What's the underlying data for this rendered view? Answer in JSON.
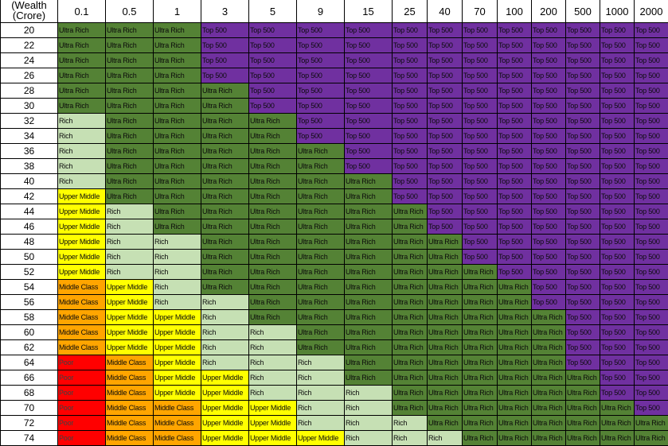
{
  "header": {
    "corner_lines": [
      "(Wealth",
      "(Crore)"
    ],
    "columns": [
      "0.1",
      "0.5",
      "1",
      "3",
      "5",
      "9",
      "15",
      "25",
      "40",
      "70",
      "100",
      "200",
      "500",
      "1000",
      "2000"
    ]
  },
  "category_colors": {
    "Top 500": "#7030a0",
    "Ultra Rich": "#548235",
    "Rich": "#c6e0b4",
    "Upper Middle": "#ffff00",
    "Middle Class": "#ffa500",
    "Poor": "#ff0000"
  },
  "rows": [
    {
      "age": "20",
      "cells": [
        "Ultra Rich",
        "Ultra Rich",
        "Ultra Rich",
        "Top 500",
        "Top 500",
        "Top 500",
        "Top 500",
        "Top 500",
        "Top 500",
        "Top 500",
        "Top 500",
        "Top 500",
        "Top 500",
        "Top 500",
        "Top 500"
      ]
    },
    {
      "age": "22",
      "cells": [
        "Ultra Rich",
        "Ultra Rich",
        "Ultra Rich",
        "Top 500",
        "Top 500",
        "Top 500",
        "Top 500",
        "Top 500",
        "Top 500",
        "Top 500",
        "Top 500",
        "Top 500",
        "Top 500",
        "Top 500",
        "Top 500"
      ]
    },
    {
      "age": "24",
      "cells": [
        "Ultra Rich",
        "Ultra Rich",
        "Ultra Rich",
        "Top 500",
        "Top 500",
        "Top 500",
        "Top 500",
        "Top 500",
        "Top 500",
        "Top 500",
        "Top 500",
        "Top 500",
        "Top 500",
        "Top 500",
        "Top 500"
      ]
    },
    {
      "age": "26",
      "cells": [
        "Ultra Rich",
        "Ultra Rich",
        "Ultra Rich",
        "Top 500",
        "Top 500",
        "Top 500",
        "Top 500",
        "Top 500",
        "Top 500",
        "Top 500",
        "Top 500",
        "Top 500",
        "Top 500",
        "Top 500",
        "Top 500"
      ]
    },
    {
      "age": "28",
      "cells": [
        "Ultra Rich",
        "Ultra Rich",
        "Ultra Rich",
        "Ultra Rich",
        "Top 500",
        "Top 500",
        "Top 500",
        "Top 500",
        "Top 500",
        "Top 500",
        "Top 500",
        "Top 500",
        "Top 500",
        "Top 500",
        "Top 500"
      ]
    },
    {
      "age": "30",
      "cells": [
        "Ultra Rich",
        "Ultra Rich",
        "Ultra Rich",
        "Ultra Rich",
        "Top 500",
        "Top 500",
        "Top 500",
        "Top 500",
        "Top 500",
        "Top 500",
        "Top 500",
        "Top 500",
        "Top 500",
        "Top 500",
        "Top 500"
      ]
    },
    {
      "age": "32",
      "cells": [
        "Rich",
        "Ultra Rich",
        "Ultra Rich",
        "Ultra Rich",
        "Ultra Rich",
        "Top 500",
        "Top 500",
        "Top 500",
        "Top 500",
        "Top 500",
        "Top 500",
        "Top 500",
        "Top 500",
        "Top 500",
        "Top 500"
      ]
    },
    {
      "age": "34",
      "cells": [
        "Rich",
        "Ultra Rich",
        "Ultra Rich",
        "Ultra Rich",
        "Ultra Rich",
        "Top 500",
        "Top 500",
        "Top 500",
        "Top 500",
        "Top 500",
        "Top 500",
        "Top 500",
        "Top 500",
        "Top 500",
        "Top 500"
      ]
    },
    {
      "age": "36",
      "cells": [
        "Rich",
        "Ultra Rich",
        "Ultra Rich",
        "Ultra Rich",
        "Ultra Rich",
        "Ultra Rich",
        "Top 500",
        "Top 500",
        "Top 500",
        "Top 500",
        "Top 500",
        "Top 500",
        "Top 500",
        "Top 500",
        "Top 500"
      ]
    },
    {
      "age": "38",
      "cells": [
        "Rich",
        "Ultra Rich",
        "Ultra Rich",
        "Ultra Rich",
        "Ultra Rich",
        "Ultra Rich",
        "Top 500",
        "Top 500",
        "Top 500",
        "Top 500",
        "Top 500",
        "Top 500",
        "Top 500",
        "Top 500",
        "Top 500"
      ]
    },
    {
      "age": "40",
      "cells": [
        "Rich",
        "Ultra Rich",
        "Ultra Rich",
        "Ultra Rich",
        "Ultra Rich",
        "Ultra Rich",
        "Ultra Rich",
        "Top 500",
        "Top 500",
        "Top 500",
        "Top 500",
        "Top 500",
        "Top 500",
        "Top 500",
        "Top 500"
      ]
    },
    {
      "age": "42",
      "cells": [
        "Upper Middle",
        "Ultra Rich",
        "Ultra Rich",
        "Ultra Rich",
        "Ultra Rich",
        "Ultra Rich",
        "Ultra Rich",
        "Top 500",
        "Top 500",
        "Top 500",
        "Top 500",
        "Top 500",
        "Top 500",
        "Top 500",
        "Top 500"
      ]
    },
    {
      "age": "44",
      "cells": [
        "Upper Middle",
        "Rich",
        "Ultra Rich",
        "Ultra Rich",
        "Ultra Rich",
        "Ultra Rich",
        "Ultra Rich",
        "Ultra Rich",
        "Top 500",
        "Top 500",
        "Top 500",
        "Top 500",
        "Top 500",
        "Top 500",
        "Top 500"
      ]
    },
    {
      "age": "46",
      "cells": [
        "Upper Middle",
        "Rich",
        "Ultra Rich",
        "Ultra Rich",
        "Ultra Rich",
        "Ultra Rich",
        "Ultra Rich",
        "Ultra Rich",
        "Top 500",
        "Top 500",
        "Top 500",
        "Top 500",
        "Top 500",
        "Top 500",
        "Top 500"
      ]
    },
    {
      "age": "48",
      "cells": [
        "Upper Middle",
        "Rich",
        "Rich",
        "Ultra Rich",
        "Ultra Rich",
        "Ultra Rich",
        "Ultra Rich",
        "Ultra Rich",
        "Ultra Rich",
        "Top 500",
        "Top 500",
        "Top 500",
        "Top 500",
        "Top 500",
        "Top 500"
      ]
    },
    {
      "age": "50",
      "cells": [
        "Upper Middle",
        "Rich",
        "Rich",
        "Ultra Rich",
        "Ultra Rich",
        "Ultra Rich",
        "Ultra Rich",
        "Ultra Rich",
        "Ultra Rich",
        "Top 500",
        "Top 500",
        "Top 500",
        "Top 500",
        "Top 500",
        "Top 500"
      ]
    },
    {
      "age": "52",
      "cells": [
        "Upper Middle",
        "Rich",
        "Rich",
        "Ultra Rich",
        "Ultra Rich",
        "Ultra Rich",
        "Ultra Rich",
        "Ultra Rich",
        "Ultra Rich",
        "Ultra Rich",
        "Top 500",
        "Top 500",
        "Top 500",
        "Top 500",
        "Top 500"
      ]
    },
    {
      "age": "54",
      "cells": [
        "Middle Class",
        "Upper Middle",
        "Rich",
        "Ultra Rich",
        "Ultra Rich",
        "Ultra Rich",
        "Ultra Rich",
        "Ultra Rich",
        "Ultra Rich",
        "Ultra Rich",
        "Ultra Rich",
        "Top 500",
        "Top 500",
        "Top 500",
        "Top 500"
      ]
    },
    {
      "age": "56",
      "cells": [
        "Middle Class",
        "Upper Middle",
        "Rich",
        "Rich",
        "Ultra Rich",
        "Ultra Rich",
        "Ultra Rich",
        "Ultra Rich",
        "Ultra Rich",
        "Ultra Rich",
        "Ultra Rich",
        "Top 500",
        "Top 500",
        "Top 500",
        "Top 500"
      ]
    },
    {
      "age": "58",
      "cells": [
        "Middle Class",
        "Upper Middle",
        "Upper Middle",
        "Rich",
        "Ultra Rich",
        "Ultra Rich",
        "Ultra Rich",
        "Ultra Rich",
        "Ultra Rich",
        "Ultra Rich",
        "Ultra Rich",
        "Ultra Rich",
        "Top 500",
        "Top 500",
        "Top 500"
      ]
    },
    {
      "age": "60",
      "cells": [
        "Middle Class",
        "Upper Middle",
        "Upper Middle",
        "Rich",
        "Rich",
        "Ultra Rich",
        "Ultra Rich",
        "Ultra Rich",
        "Ultra Rich",
        "Ultra Rich",
        "Ultra Rich",
        "Ultra Rich",
        "Top 500",
        "Top 500",
        "Top 500"
      ]
    },
    {
      "age": "62",
      "cells": [
        "Middle Class",
        "Upper Middle",
        "Upper Middle",
        "Rich",
        "Rich",
        "Ultra Rich",
        "Ultra Rich",
        "Ultra Rich",
        "Ultra Rich",
        "Ultra Rich",
        "Ultra Rich",
        "Ultra Rich",
        "Top 500",
        "Top 500",
        "Top 500"
      ]
    },
    {
      "age": "64",
      "cells": [
        "Poor",
        "Middle Class",
        "Upper Middle",
        "Rich",
        "Rich",
        "Rich",
        "Ultra Rich",
        "Ultra Rich",
        "Ultra Rich",
        "Ultra Rich",
        "Ultra Rich",
        "Ultra Rich",
        "Top 500",
        "Top 500",
        "Top 500"
      ]
    },
    {
      "age": "66",
      "cells": [
        "Poor",
        "Middle Class",
        "Upper Middle",
        "Upper Middle",
        "Rich",
        "Rich",
        "Ultra Rich",
        "Ultra Rich",
        "Ultra Rich",
        "Ultra Rich",
        "Ultra Rich",
        "Ultra Rich",
        "Ultra Rich",
        "Top 500",
        "Top 500"
      ]
    },
    {
      "age": "68",
      "cells": [
        "Poor",
        "Middle Class",
        "Upper Middle",
        "Upper Middle",
        "Rich",
        "Rich",
        "Rich",
        "Ultra Rich",
        "Ultra Rich",
        "Ultra Rich",
        "Ultra Rich",
        "Ultra Rich",
        "Ultra Rich",
        "Top 500",
        "Top 500"
      ]
    },
    {
      "age": "70",
      "cells": [
        "Poor",
        "Middle Class",
        "Middle Class",
        "Upper Middle",
        "Upper Middle",
        "Rich",
        "Rich",
        "Ultra Rich",
        "Ultra Rich",
        "Ultra Rich",
        "Ultra Rich",
        "Ultra Rich",
        "Ultra Rich",
        "Ultra Rich",
        "Top 500"
      ]
    },
    {
      "age": "72",
      "cells": [
        "Poor",
        "Middle Class",
        "Middle Class",
        "Upper Middle",
        "Upper Middle",
        "Rich",
        "Rich",
        "Rich",
        "Ultra Rich",
        "Ultra Rich",
        "Ultra Rich",
        "Ultra Rich",
        "Ultra Rich",
        "Ultra Rich",
        "Ultra Rich"
      ]
    },
    {
      "age": "74",
      "cells": [
        "Poor",
        "Middle Class",
        "Middle Class",
        "Upper Middle",
        "Upper Middle",
        "Upper Middle",
        "Rich",
        "Rich",
        "Rich",
        "Ultra Rich",
        "Ultra Rich",
        "Ultra Rich",
        "Ultra Rich",
        "Ultra Rich",
        "Ultra Rich"
      ]
    }
  ]
}
